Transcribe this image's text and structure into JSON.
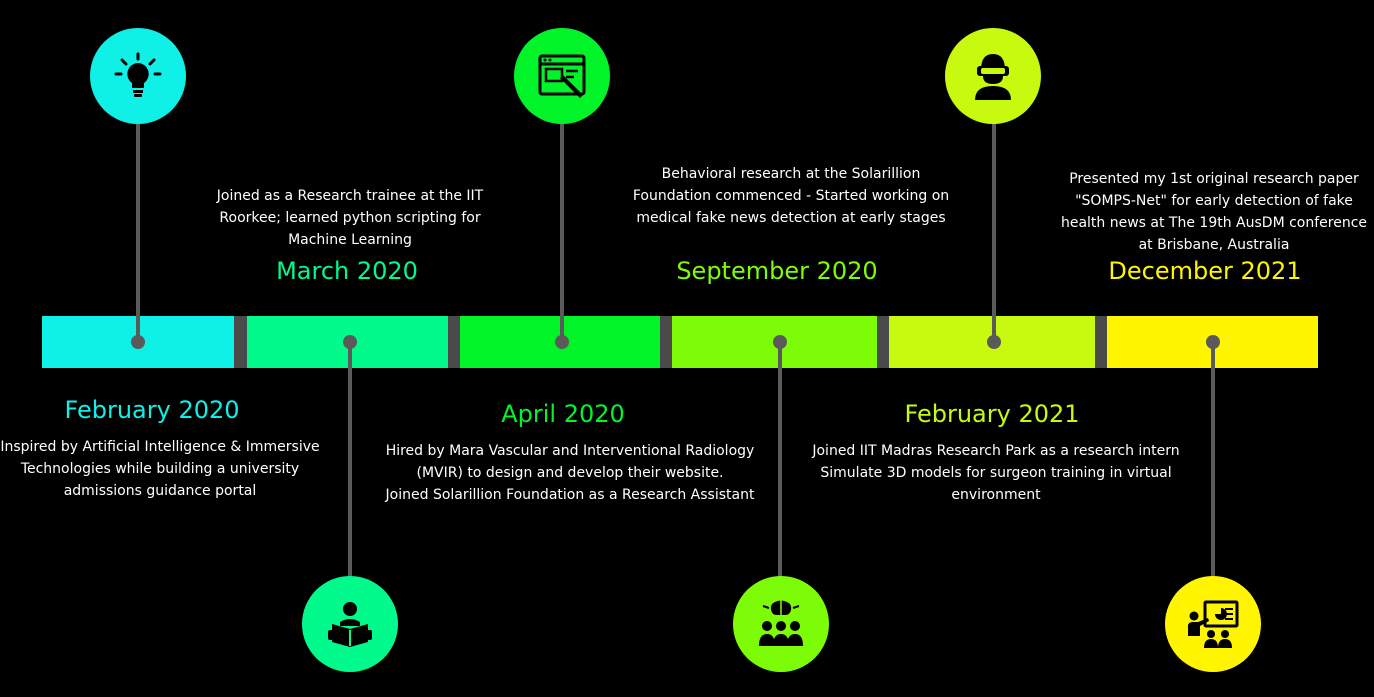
{
  "colors": {
    "cyan": "#0ff0e6",
    "mint": "#00fa8c",
    "green": "#00f428",
    "lime": "#7dfc08",
    "yellowgreen": "#c8fa10",
    "yellow": "#fff500",
    "gap": "#4a4a4a",
    "stem": "#5a5a5a"
  },
  "milestones": [
    {
      "date": "February 2020",
      "description": "Inspired by Artificial Intelligence & Immersive Technologies while building a university admissions guidance portal",
      "icon": "lightbulb-icon"
    },
    {
      "date": "March 2020",
      "description": "Joined as a Research trainee at the IIT Roorkee; learned python scripting for Machine Learning",
      "icon": "reader-book-icon"
    },
    {
      "date": "April 2020",
      "description_lines": [
        "Hired by Mara Vascular and Interventional Radiology",
        "(MVIR) to design and develop their website.",
        "Joined Solarillion Foundation as a Research Assistant"
      ],
      "icon": "web-design-icon"
    },
    {
      "date": "September 2020",
      "description": "Behavioral research at the Solarillion Foundation commenced - Started working on medical fake news detection at early stages",
      "icon": "team-brain-icon"
    },
    {
      "date": "February 2021",
      "description_lines": [
        "Joined IIT Madras Research Park as a research intern",
        "Simulate 3D models for surgeon training in virtual environment"
      ],
      "icon": "vr-headset-user-icon"
    },
    {
      "date": "December 2021",
      "description": "Presented my 1st original research paper \"SOMPS-Net\" for early detection of fake health news at The 19th AusDM conference at Brisbane, Australia",
      "icon": "presentation-icon"
    }
  ]
}
